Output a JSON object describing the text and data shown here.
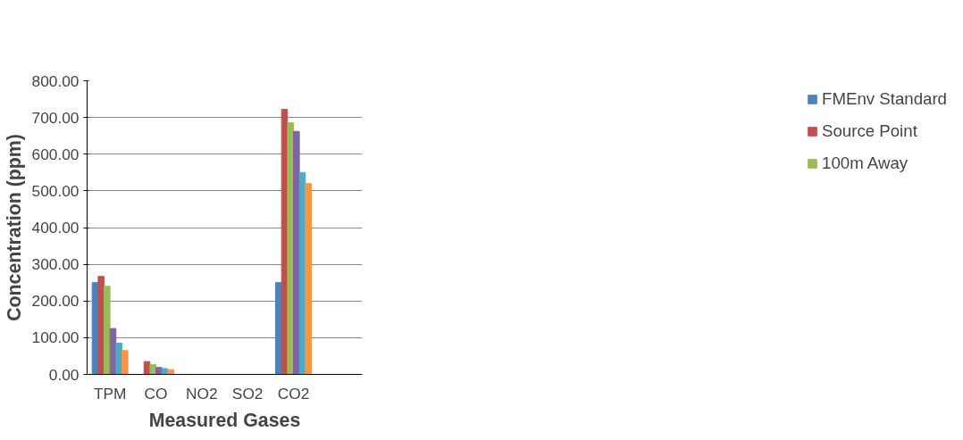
{
  "chart_data": {
    "type": "bar",
    "xlabel": "Measured Gases",
    "ylabel": "Concentration (ppm)",
    "categories": [
      "TPM",
      "CO",
      "NO2",
      "SO2",
      "CO2",
      null
    ],
    "series": [
      {
        "name": "FMEnv Standard",
        "color": "#4f81bd",
        "values": [
          250,
          0,
          0,
          0,
          250,
          null
        ]
      },
      {
        "name": "Source Point",
        "color": "#c0504d",
        "values": [
          267,
          35,
          0,
          0,
          722,
          null
        ]
      },
      {
        "name": "100m Away",
        "color": "#9bbb59",
        "values": [
          240,
          27,
          0,
          0,
          686,
          null
        ]
      },
      {
        "color": "#8064a2",
        "values": [
          125,
          19,
          0,
          0,
          662,
          null
        ]
      },
      {
        "color": "#4bacc6",
        "values": [
          85,
          16,
          0,
          0,
          550,
          null
        ]
      },
      {
        "color": "#f79646",
        "values": [
          65,
          13,
          0,
          0,
          520,
          null
        ]
      }
    ],
    "ylim": [
      0,
      800
    ],
    "yticks": [
      {
        "value": 0,
        "label": "0.00"
      },
      {
        "value": 100,
        "label": "100.00"
      },
      {
        "value": 200,
        "label": "200.00"
      },
      {
        "value": 300,
        "label": "300.00"
      },
      {
        "value": 400,
        "label": "400.00"
      },
      {
        "value": 500,
        "label": "500.00"
      },
      {
        "value": 600,
        "label": "600.00"
      },
      {
        "value": 700,
        "label": "700.00"
      },
      {
        "value": 800,
        "label": "800.00"
      }
    ],
    "grid": "y",
    "legend": "right"
  }
}
